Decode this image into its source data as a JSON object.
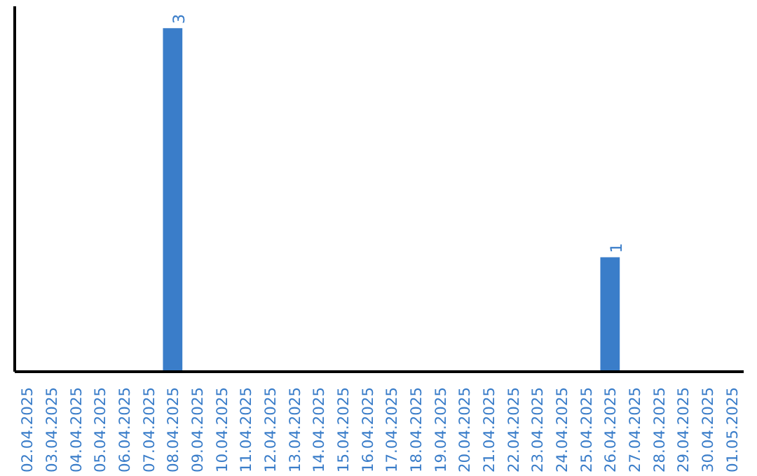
{
  "chart_data": {
    "type": "bar",
    "categories": [
      "02.04.2025",
      "03.04.2025",
      "04.04.2025",
      "05.04.2025",
      "06.04.2025",
      "07.04.2025",
      "08.04.2025",
      "09.04.2025",
      "10.04.2025",
      "11.04.2025",
      "12.04.2025",
      "13.04.2025",
      "14.04.2025",
      "15.04.2025",
      "16.04.2025",
      "17.04.2025",
      "18.04.2025",
      "19.04.2025",
      "20.04.2025",
      "21.04.2025",
      "22.04.2025",
      "23.04.2025",
      "24.04.2025",
      "25.04.2025",
      "26.04.2025",
      "27.04.2025",
      "28.04.2025",
      "29.04.2025",
      "30.04.2025",
      "01.05.2025"
    ],
    "values": [
      0,
      0,
      0,
      0,
      0,
      0,
      3,
      0,
      0,
      0,
      0,
      0,
      0,
      0,
      0,
      0,
      0,
      0,
      0,
      0,
      0,
      0,
      0,
      0,
      1,
      0,
      0,
      0,
      0,
      0
    ],
    "value_labels": [
      null,
      null,
      null,
      null,
      null,
      null,
      "3",
      null,
      null,
      null,
      null,
      null,
      null,
      null,
      null,
      null,
      null,
      null,
      null,
      null,
      null,
      null,
      null,
      null,
      "1",
      null,
      null,
      null,
      null,
      null
    ],
    "color": "#3a7dc9",
    "grid": false
  }
}
